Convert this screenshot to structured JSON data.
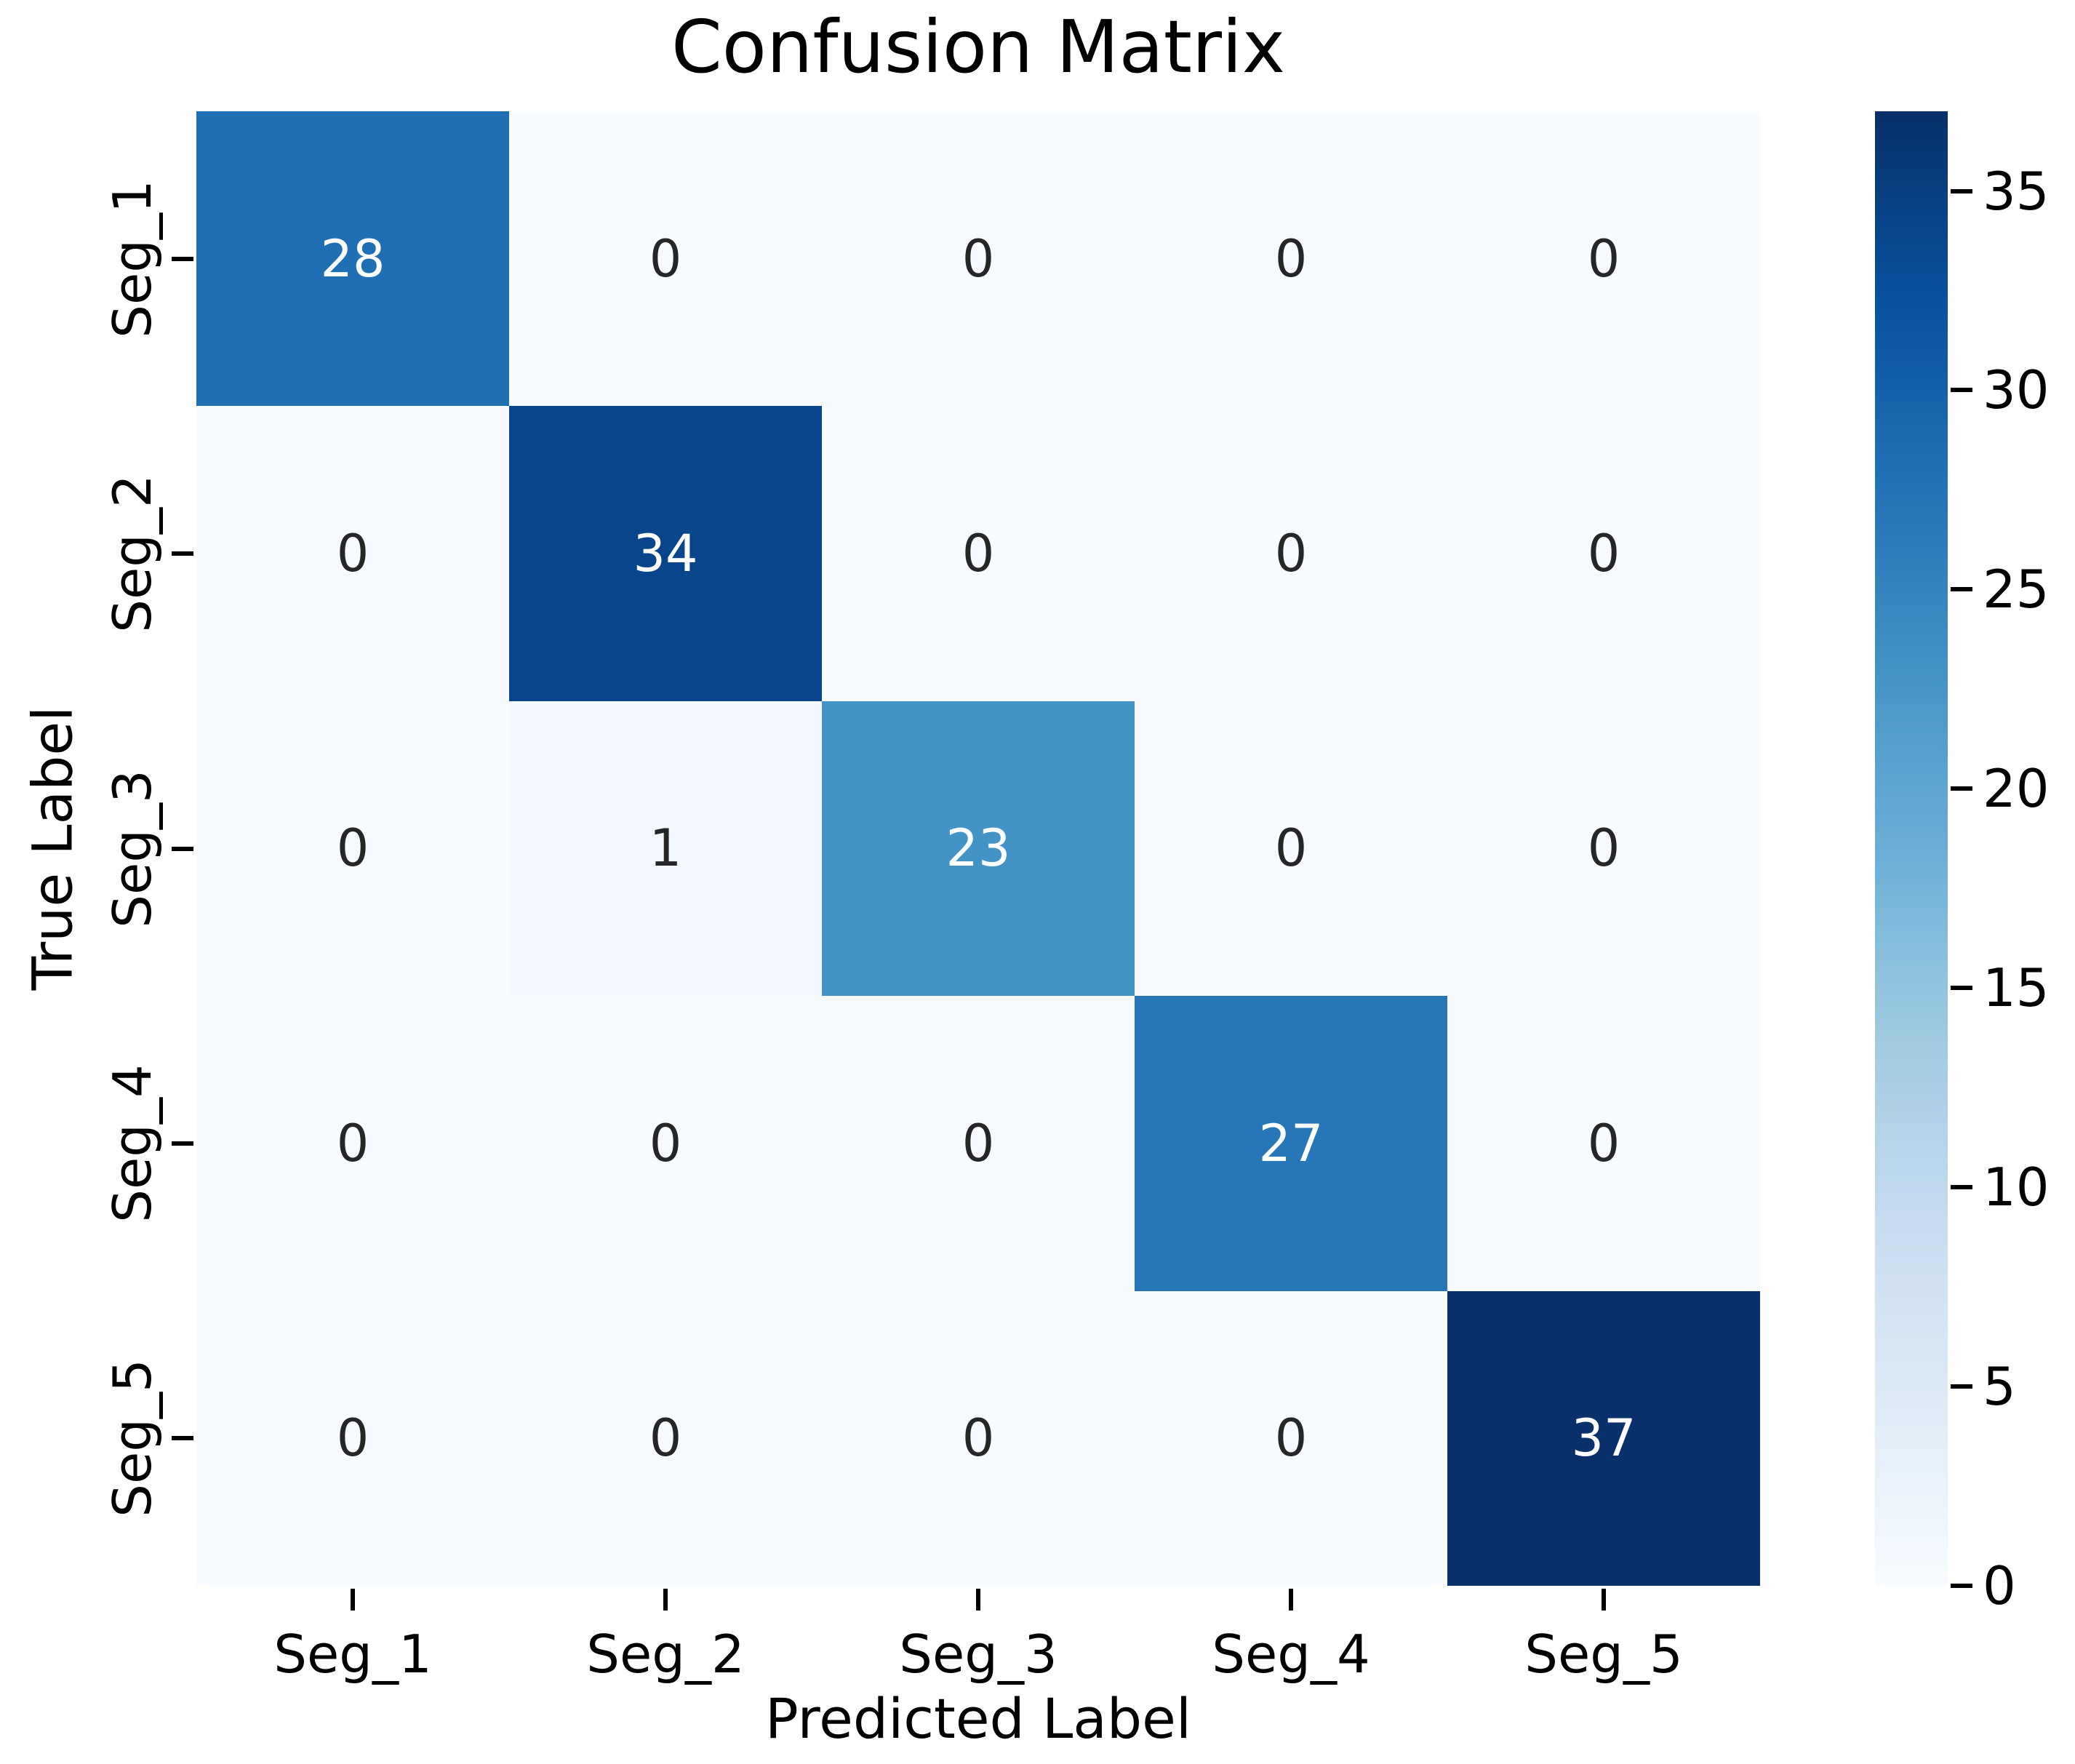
{
  "chart_data": {
    "type": "heatmap",
    "title": "Confusion Matrix",
    "xlabel": "Predicted Label",
    "ylabel": "True Label",
    "x_categories": [
      "Seg_1",
      "Seg_2",
      "Seg_3",
      "Seg_4",
      "Seg_5"
    ],
    "y_categories": [
      "Seg_1",
      "Seg_2",
      "Seg_3",
      "Seg_4",
      "Seg_5"
    ],
    "matrix": [
      [
        28,
        0,
        0,
        0,
        0
      ],
      [
        0,
        34,
        0,
        0,
        0
      ],
      [
        0,
        1,
        23,
        0,
        0
      ],
      [
        0,
        0,
        0,
        27,
        0
      ],
      [
        0,
        0,
        0,
        0,
        37
      ]
    ],
    "vmin": 0,
    "vmax": 37,
    "colormap": "Blues",
    "colorbar_ticks": [
      0,
      5,
      10,
      15,
      20,
      25,
      30,
      35
    ],
    "legend_position": "right-colorbar",
    "grid": false,
    "colors": {
      "background": "#ffffff",
      "cmap_stops": [
        "#f7fbff",
        "#deebf7",
        "#c6dbef",
        "#9ecae1",
        "#6baed6",
        "#4292c6",
        "#2171b5",
        "#08519c",
        "#08306b"
      ],
      "annotation_on_dark": "#ffffff",
      "annotation_on_light": "#262626",
      "axis_text": "#000000"
    }
  }
}
